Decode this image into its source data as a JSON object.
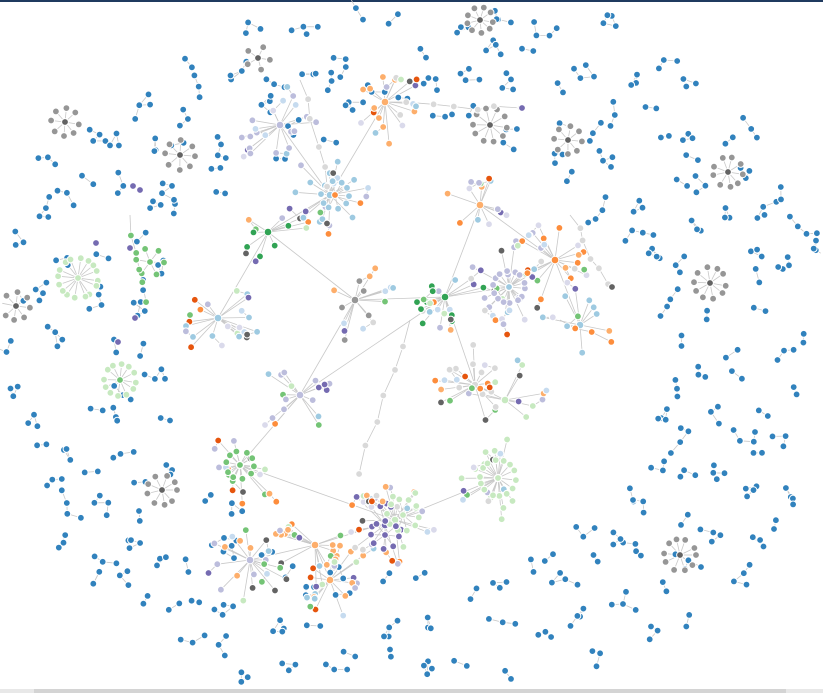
{
  "graph": {
    "kind": "force-directed-network",
    "labels_visible": false,
    "palette": {
      "blue": "#3182bd",
      "gray": "#969696",
      "dark_gray": "#636363",
      "light_gray": "#d9d9d9",
      "orange": "#fd8d3c",
      "dark_orange": "#e6550d",
      "light_orange": "#fdae6b",
      "green": "#74c476",
      "dark_green": "#31a354",
      "light_green": "#c7e9c0",
      "purple": "#756bb1",
      "light_purple": "#bcbddc",
      "very_light_purple": "#dadaeb",
      "light_blue": "#9ecae1",
      "pale_blue": "#c6dbef"
    }
  }
}
